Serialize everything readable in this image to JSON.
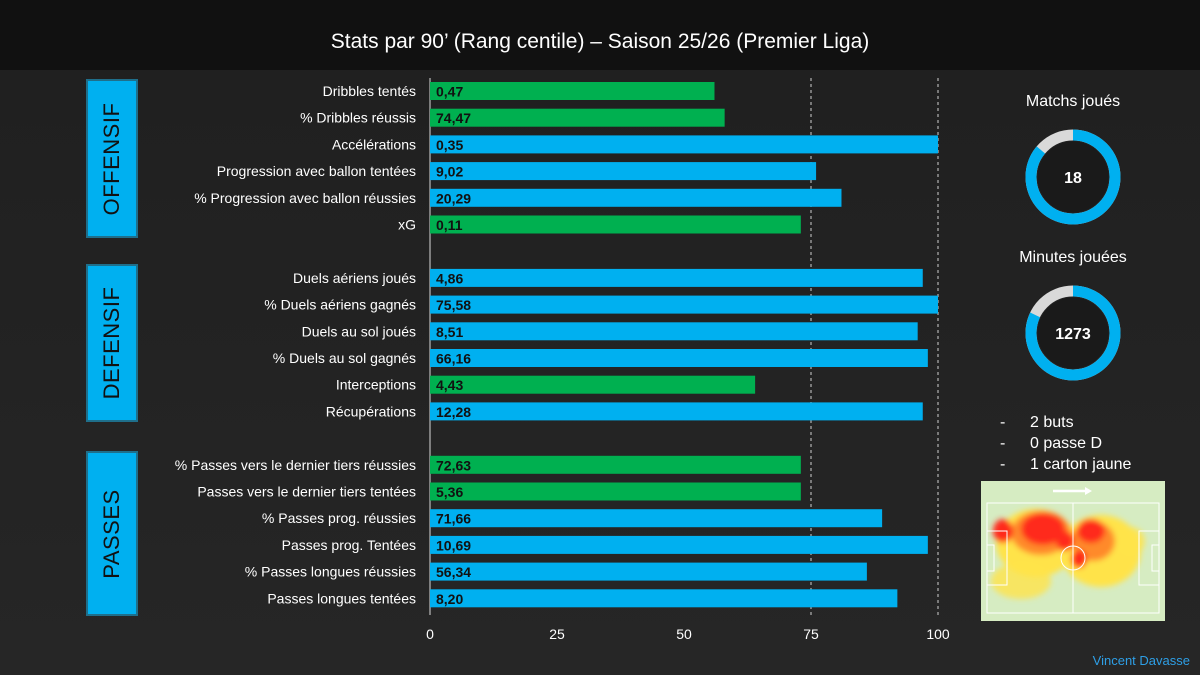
{
  "title": "Stats par 90’ (Rang centile) – Saison 25/26 (Premier Liga)",
  "sections": [
    {
      "label": "OFFENSIF"
    },
    {
      "label": "DEFENSIF"
    },
    {
      "label": "PASSES"
    }
  ],
  "colors": {
    "blue": "#00b0f0",
    "green": "#00b050",
    "heat_red": "#ff2a1a",
    "heat_yellow": "#ffe34a",
    "pitch": "#d6ecc2"
  },
  "chart_data": {
    "type": "bar",
    "orientation": "horizontal",
    "xlim": [
      0,
      100
    ],
    "xticks": [
      0,
      25,
      50,
      75,
      100
    ],
    "grid": "dashed vertical lines at 75 and 100",
    "bars": [
      {
        "label": "Dribbles tentés",
        "percentile": 56,
        "value_label": "0,47",
        "color": "green",
        "section": "OFFENSIF"
      },
      {
        "label": "% Dribbles réussis",
        "percentile": 58,
        "value_label": "74,47",
        "color": "green",
        "section": "OFFENSIF"
      },
      {
        "label": "Accélérations",
        "percentile": 100,
        "value_label": "0,35",
        "color": "blue",
        "section": "OFFENSIF"
      },
      {
        "label": "Progression avec ballon tentées",
        "percentile": 76,
        "value_label": "9,02",
        "color": "blue",
        "section": "OFFENSIF"
      },
      {
        "label": "% Progression avec ballon réussies",
        "percentile": 81,
        "value_label": "20,29",
        "color": "blue",
        "section": "OFFENSIF"
      },
      {
        "label": "xG",
        "percentile": 73,
        "value_label": "0,11",
        "color": "green",
        "section": "OFFENSIF"
      },
      {
        "label": "Duels aériens joués",
        "percentile": 97,
        "value_label": "4,86",
        "color": "blue",
        "section": "DEFENSIF"
      },
      {
        "label": "% Duels aériens gagnés",
        "percentile": 100,
        "value_label": "75,58",
        "color": "blue",
        "section": "DEFENSIF"
      },
      {
        "label": "Duels au sol joués",
        "percentile": 96,
        "value_label": "8,51",
        "color": "blue",
        "section": "DEFENSIF"
      },
      {
        "label": "% Duels au sol gagnés",
        "percentile": 98,
        "value_label": "66,16",
        "color": "blue",
        "section": "DEFENSIF"
      },
      {
        "label": "Interceptions",
        "percentile": 64,
        "value_label": "4,43",
        "color": "green",
        "section": "DEFENSIF"
      },
      {
        "label": "Récupérations",
        "percentile": 97,
        "value_label": "12,28",
        "color": "blue",
        "section": "DEFENSIF"
      },
      {
        "label": "% Passes vers le dernier tiers réussies",
        "percentile": 73,
        "value_label": "72,63",
        "color": "green",
        "section": "PASSES"
      },
      {
        "label": "Passes vers le dernier tiers tentées",
        "percentile": 73,
        "value_label": "5,36",
        "color": "green",
        "section": "PASSES"
      },
      {
        "label": "% Passes prog. réussies",
        "percentile": 89,
        "value_label": "71,66",
        "color": "blue",
        "section": "PASSES"
      },
      {
        "label": "Passes prog. Tentées",
        "percentile": 98,
        "value_label": "10,69",
        "color": "blue",
        "section": "PASSES"
      },
      {
        "label": "% Passes longues réussies",
        "percentile": 86,
        "value_label": "56,34",
        "color": "blue",
        "section": "PASSES"
      },
      {
        "label": "Passes longues tentées",
        "percentile": 92,
        "value_label": "8,20",
        "color": "blue",
        "section": "PASSES"
      }
    ]
  },
  "donuts": [
    {
      "title": "Matchs joués",
      "value": "18",
      "fraction": 0.86
    },
    {
      "title": "Minutes jouées",
      "value": "1273",
      "fraction": 0.82
    }
  ],
  "summary": [
    {
      "dash": "-",
      "text": "2 buts"
    },
    {
      "dash": "-",
      "text": "0 passe D"
    },
    {
      "dash": "-",
      "text": "1 carton jaune"
    }
  ],
  "heatmap": {
    "direction_icon": "arrow-right-icon"
  },
  "credit": "Vincent Davasse"
}
